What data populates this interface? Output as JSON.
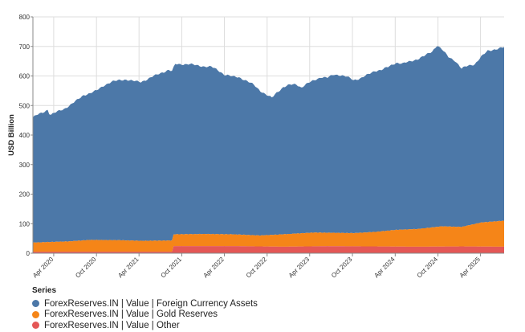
{
  "chart_data": {
    "type": "area",
    "stacked": true,
    "ylabel": "USD Billion",
    "xlabel": "",
    "ylim": [
      0,
      800
    ],
    "yticks": [
      0,
      100,
      200,
      300,
      400,
      500,
      600,
      700,
      800
    ],
    "xlim": [
      "2020-01-03",
      "2025-07-11"
    ],
    "xticks": [
      {
        "date": "2020-04-01",
        "label": "Apr 2020"
      },
      {
        "date": "2020-10-01",
        "label": "Oct 2020"
      },
      {
        "date": "2021-04-01",
        "label": "Apr 2021"
      },
      {
        "date": "2021-10-01",
        "label": "Oct 2021"
      },
      {
        "date": "2022-04-01",
        "label": "Apr 2022"
      },
      {
        "date": "2022-10-01",
        "label": "Oct 2022"
      },
      {
        "date": "2023-04-01",
        "label": "Apr 2023"
      },
      {
        "date": "2023-10-01",
        "label": "Oct 2023"
      },
      {
        "date": "2024-04-01",
        "label": "Apr 2024"
      },
      {
        "date": "2024-10-01",
        "label": "Oct 2024"
      },
      {
        "date": "2025-04-01",
        "label": "Apr 2025"
      }
    ],
    "grid": true,
    "legend": {
      "title": "Series",
      "placement": "bottom-left"
    },
    "total_outline": [
      [
        "2020-01-03",
        460
      ],
      [
        "2020-01-20",
        468
      ],
      [
        "2020-02-14",
        476
      ],
      [
        "2020-03-06",
        486
      ],
      [
        "2020-03-16",
        468
      ],
      [
        "2020-04-10",
        477
      ],
      [
        "2020-05-15",
        488
      ],
      [
        "2020-06-12",
        503
      ],
      [
        "2020-07-10",
        518
      ],
      [
        "2020-08-07",
        535
      ],
      [
        "2020-09-04",
        542
      ],
      [
        "2020-10-02",
        551
      ],
      [
        "2020-11-06",
        570
      ],
      [
        "2020-12-04",
        580
      ],
      [
        "2021-01-08",
        586
      ],
      [
        "2021-02-05",
        588
      ],
      [
        "2021-03-05",
        583
      ],
      [
        "2021-04-09",
        580
      ],
      [
        "2021-05-07",
        589
      ],
      [
        "2021-06-04",
        600
      ],
      [
        "2021-07-09",
        612
      ],
      [
        "2021-08-06",
        620
      ],
      [
        "2021-08-20",
        616
      ],
      [
        "2021-09-03",
        640
      ],
      [
        "2021-10-01",
        640
      ],
      [
        "2021-11-05",
        640
      ],
      [
        "2021-12-03",
        636
      ],
      [
        "2022-01-07",
        632
      ],
      [
        "2022-02-04",
        631
      ],
      [
        "2022-03-04",
        620
      ],
      [
        "2022-04-01",
        605
      ],
      [
        "2022-05-06",
        598
      ],
      [
        "2022-06-03",
        596
      ],
      [
        "2022-07-08",
        582
      ],
      [
        "2022-08-05",
        570
      ],
      [
        "2022-09-02",
        550
      ],
      [
        "2022-09-30",
        535
      ],
      [
        "2022-10-21",
        526
      ],
      [
        "2022-11-11",
        544
      ],
      [
        "2022-12-09",
        562
      ],
      [
        "2023-01-06",
        570
      ],
      [
        "2023-02-03",
        572
      ],
      [
        "2023-02-24",
        561
      ],
      [
        "2023-03-24",
        575
      ],
      [
        "2023-04-21",
        586
      ],
      [
        "2023-05-19",
        596
      ],
      [
        "2023-06-16",
        594
      ],
      [
        "2023-07-14",
        605
      ],
      [
        "2023-08-11",
        603
      ],
      [
        "2023-09-08",
        597
      ],
      [
        "2023-10-06",
        586
      ],
      [
        "2023-11-03",
        592
      ],
      [
        "2023-12-08",
        605
      ],
      [
        "2024-01-05",
        617
      ],
      [
        "2024-02-02",
        621
      ],
      [
        "2024-03-01",
        630
      ],
      [
        "2024-04-05",
        645
      ],
      [
        "2024-05-03",
        642
      ],
      [
        "2024-06-07",
        650
      ],
      [
        "2024-07-05",
        657
      ],
      [
        "2024-08-02",
        667
      ],
      [
        "2024-09-06",
        683
      ],
      [
        "2024-09-27",
        704
      ],
      [
        "2024-10-18",
        690
      ],
      [
        "2024-11-15",
        664
      ],
      [
        "2024-12-13",
        652
      ],
      [
        "2025-01-10",
        625
      ],
      [
        "2025-02-07",
        635
      ],
      [
        "2025-03-07",
        640
      ],
      [
        "2025-04-04",
        665
      ],
      [
        "2025-05-02",
        685
      ],
      [
        "2025-06-06",
        691
      ],
      [
        "2025-07-11",
        697
      ]
    ],
    "series": [
      {
        "name": "ForexReserves.IN | Value | Foreign Currency Assets",
        "color": "#4c78a8",
        "note_values": "stacked on top of Gold Reserves; reaches the total outline"
      },
      {
        "name": "ForexReserves.IN | Value | Gold Reserves",
        "color": "#f58518",
        "cumulative_top": [
          [
            "2020-01-03",
            36
          ],
          [
            "2020-06-05",
            40
          ],
          [
            "2020-09-04",
            45
          ],
          [
            "2021-01-08",
            44
          ],
          [
            "2021-04-09",
            42
          ],
          [
            "2021-08-20",
            43
          ],
          [
            "2021-08-27",
            64
          ],
          [
            "2022-01-07",
            65
          ],
          [
            "2022-05-06",
            64
          ],
          [
            "2022-09-02",
            60
          ],
          [
            "2022-12-09",
            64
          ],
          [
            "2023-04-21",
            70
          ],
          [
            "2023-10-06",
            68
          ],
          [
            "2024-01-05",
            72
          ],
          [
            "2024-04-05",
            79
          ],
          [
            "2024-07-05",
            82
          ],
          [
            "2024-10-18",
            91
          ],
          [
            "2025-01-10",
            89
          ],
          [
            "2025-04-04",
            104
          ],
          [
            "2025-07-11",
            110
          ]
        ]
      },
      {
        "name": "ForexReserves.IN | Value | Other",
        "color": "#e45756",
        "cumulative_top": [
          [
            "2020-01-03",
            5
          ],
          [
            "2021-08-20",
            5
          ],
          [
            "2021-08-27",
            24
          ],
          [
            "2022-06-03",
            24
          ],
          [
            "2022-12-09",
            22
          ],
          [
            "2023-06-16",
            24
          ],
          [
            "2024-01-05",
            23
          ],
          [
            "2024-07-05",
            22
          ],
          [
            "2025-01-10",
            23
          ],
          [
            "2025-07-11",
            22
          ]
        ]
      }
    ]
  }
}
